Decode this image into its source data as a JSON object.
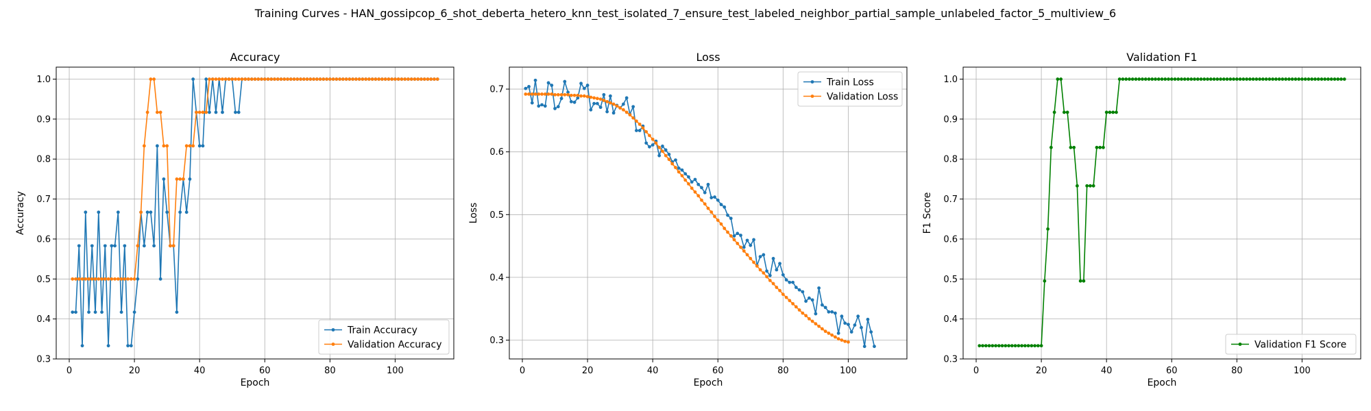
{
  "suptitle": "Training Curves - HAN_gossipcop_6_shot_deberta_hetero_knn_test_isolated_7_ensure_test_labeled_neighbor_partial_sample_unlabeled_factor_5_multiview_6",
  "colors": {
    "blue": "#1f77b4",
    "orange": "#ff7f0e",
    "green": "#008000",
    "grid": "#b0b0b0"
  },
  "chart_data": [
    {
      "type": "line",
      "title": "Accuracy",
      "xlabel": "Epoch",
      "ylabel": "Accuracy",
      "xlim": [
        -4,
        118
      ],
      "ylim": [
        0.3,
        1.03
      ],
      "xticks": [
        0,
        20,
        40,
        60,
        80,
        100
      ],
      "yticks": [
        0.3,
        0.4,
        0.5,
        0.6,
        0.7,
        0.8,
        0.9,
        1.0
      ],
      "ytick_labels": [
        "0.3",
        "0.4",
        "0.5",
        "0.6",
        "0.7",
        "0.8",
        "0.9",
        "1.0"
      ],
      "grid": true,
      "legend": "lower-right",
      "series": [
        {
          "name": "Train Accuracy",
          "color": "#1f77b4",
          "x_start": 1,
          "values": [
            0.417,
            0.417,
            0.583,
            0.333,
            0.667,
            0.417,
            0.583,
            0.417,
            0.667,
            0.417,
            0.583,
            0.333,
            0.583,
            0.583,
            0.667,
            0.417,
            0.583,
            0.333,
            0.333,
            0.417,
            0.5,
            0.667,
            0.583,
            0.667,
            0.667,
            0.583,
            0.833,
            0.5,
            0.75,
            0.667,
            0.583,
            0.583,
            0.417,
            0.667,
            0.75,
            0.667,
            0.75,
            1.0,
            0.917,
            0.833,
            0.833,
            1.0,
            0.917,
            1.0,
            0.917,
            1.0,
            0.917,
            1.0,
            1.0,
            1.0,
            0.917,
            0.917,
            1.0,
            1.0,
            1.0,
            1.0,
            1.0,
            1.0,
            1.0,
            1.0,
            1.0,
            1.0,
            1.0,
            1.0,
            1.0,
            1.0,
            1.0,
            1.0,
            1.0,
            1.0,
            1.0,
            1.0,
            1.0,
            1.0,
            1.0,
            1.0,
            1.0,
            1.0,
            1.0,
            1.0,
            1.0,
            1.0,
            1.0,
            1.0,
            1.0,
            1.0,
            1.0,
            1.0,
            1.0,
            1.0,
            1.0,
            1.0,
            1.0,
            1.0,
            1.0,
            1.0,
            1.0,
            1.0,
            1.0,
            1.0,
            1.0,
            1.0,
            1.0,
            1.0,
            1.0,
            1.0,
            1.0,
            1.0,
            1.0,
            1.0,
            1.0,
            1.0,
            1.0
          ]
        },
        {
          "name": "Validation Accuracy",
          "color": "#ff7f0e",
          "x_start": 1,
          "values": [
            0.5,
            0.5,
            0.5,
            0.5,
            0.5,
            0.5,
            0.5,
            0.5,
            0.5,
            0.5,
            0.5,
            0.5,
            0.5,
            0.5,
            0.5,
            0.5,
            0.5,
            0.5,
            0.5,
            0.5,
            0.583,
            0.667,
            0.833,
            0.917,
            1.0,
            1.0,
            0.917,
            0.917,
            0.833,
            0.833,
            0.583,
            0.583,
            0.75,
            0.75,
            0.75,
            0.833,
            0.833,
            0.833,
            0.917,
            0.917,
            0.917,
            0.917,
            1.0,
            1.0,
            1.0,
            1.0,
            1.0,
            1.0,
            1.0,
            1.0,
            1.0,
            1.0,
            1.0,
            1.0,
            1.0,
            1.0,
            1.0,
            1.0,
            1.0,
            1.0,
            1.0,
            1.0,
            1.0,
            1.0,
            1.0,
            1.0,
            1.0,
            1.0,
            1.0,
            1.0,
            1.0,
            1.0,
            1.0,
            1.0,
            1.0,
            1.0,
            1.0,
            1.0,
            1.0,
            1.0,
            1.0,
            1.0,
            1.0,
            1.0,
            1.0,
            1.0,
            1.0,
            1.0,
            1.0,
            1.0,
            1.0,
            1.0,
            1.0,
            1.0,
            1.0,
            1.0,
            1.0,
            1.0,
            1.0,
            1.0,
            1.0,
            1.0,
            1.0,
            1.0,
            1.0,
            1.0,
            1.0,
            1.0,
            1.0,
            1.0,
            1.0,
            1.0,
            1.0
          ]
        }
      ]
    },
    {
      "type": "line",
      "title": "Loss",
      "xlabel": "Epoch",
      "ylabel": "Loss",
      "xlim": [
        -4,
        118
      ],
      "ylim": [
        0.27,
        0.735
      ],
      "xticks": [
        0,
        20,
        40,
        60,
        80,
        100
      ],
      "yticks": [
        0.3,
        0.4,
        0.5,
        0.6,
        0.7
      ],
      "ytick_labels": [
        "0.3",
        "0.4",
        "0.5",
        "0.6",
        "0.7"
      ],
      "grid": true,
      "legend": "top-right",
      "series": [
        {
          "name": "Train Loss",
          "color": "#1f77b4",
          "x_start": 1,
          "values": [
            0.701,
            0.704,
            0.678,
            0.714,
            0.673,
            0.675,
            0.673,
            0.71,
            0.706,
            0.669,
            0.672,
            0.685,
            0.712,
            0.695,
            0.68,
            0.679,
            0.686,
            0.709,
            0.701,
            0.706,
            0.667,
            0.677,
            0.677,
            0.671,
            0.691,
            0.664,
            0.689,
            0.662,
            0.674,
            0.67,
            0.676,
            0.686,
            0.66,
            0.672,
            0.634,
            0.634,
            0.641,
            0.614,
            0.608,
            0.611,
            0.617,
            0.594,
            0.609,
            0.603,
            0.596,
            0.584,
            0.587,
            0.574,
            0.571,
            0.565,
            0.56,
            0.552,
            0.556,
            0.548,
            0.543,
            0.535,
            0.548,
            0.527,
            0.528,
            0.523,
            0.516,
            0.512,
            0.499,
            0.494,
            0.466,
            0.47,
            0.467,
            0.448,
            0.459,
            0.451,
            0.46,
            0.419,
            0.433,
            0.436,
            0.41,
            0.403,
            0.43,
            0.412,
            0.422,
            0.404,
            0.396,
            0.392,
            0.392,
            0.384,
            0.38,
            0.377,
            0.362,
            0.367,
            0.364,
            0.342,
            0.383,
            0.356,
            0.352,
            0.345,
            0.345,
            0.343,
            0.311,
            0.338,
            0.327,
            0.325,
            0.313,
            0.324,
            0.338,
            0.32,
            0.29,
            0.333,
            0.313,
            0.29
          ]
        },
        {
          "name": "Validation Loss",
          "color": "#ff7f0e",
          "x_start": 1,
          "values": [
            0.692,
            0.692,
            0.692,
            0.692,
            0.692,
            0.692,
            0.692,
            0.692,
            0.692,
            0.691,
            0.691,
            0.691,
            0.691,
            0.691,
            0.69,
            0.69,
            0.69,
            0.689,
            0.689,
            0.688,
            0.687,
            0.686,
            0.685,
            0.684,
            0.682,
            0.68,
            0.678,
            0.676,
            0.673,
            0.67,
            0.667,
            0.663,
            0.659,
            0.654,
            0.649,
            0.644,
            0.638,
            0.632,
            0.626,
            0.62,
            0.614,
            0.607,
            0.601,
            0.594,
            0.588,
            0.581,
            0.575,
            0.568,
            0.562,
            0.555,
            0.549,
            0.542,
            0.536,
            0.53,
            0.523,
            0.517,
            0.51,
            0.504,
            0.497,
            0.491,
            0.485,
            0.478,
            0.472,
            0.466,
            0.46,
            0.454,
            0.448,
            0.442,
            0.436,
            0.43,
            0.424,
            0.418,
            0.412,
            0.407,
            0.401,
            0.395,
            0.39,
            0.384,
            0.379,
            0.373,
            0.368,
            0.363,
            0.358,
            0.353,
            0.348,
            0.343,
            0.339,
            0.334,
            0.33,
            0.326,
            0.322,
            0.318,
            0.314,
            0.311,
            0.308,
            0.305,
            0.302,
            0.3,
            0.298,
            0.297
          ]
        }
      ]
    },
    {
      "type": "line",
      "title": "Validation F1",
      "xlabel": "Epoch",
      "ylabel": "F1 Score",
      "xlim": [
        -4,
        118
      ],
      "ylim": [
        0.3,
        1.03
      ],
      "xticks": [
        0,
        20,
        40,
        60,
        80,
        100
      ],
      "yticks": [
        0.3,
        0.4,
        0.5,
        0.6,
        0.7,
        0.8,
        0.9,
        1.0
      ],
      "ytick_labels": [
        "0.3",
        "0.4",
        "0.5",
        "0.6",
        "0.7",
        "0.8",
        "0.9",
        "1.0"
      ],
      "grid": true,
      "legend": "lower-right",
      "series": [
        {
          "name": "Validation F1 Score",
          "color": "#008000",
          "x_start": 1,
          "values": [
            0.333,
            0.333,
            0.333,
            0.333,
            0.333,
            0.333,
            0.333,
            0.333,
            0.333,
            0.333,
            0.333,
            0.333,
            0.333,
            0.333,
            0.333,
            0.333,
            0.333,
            0.333,
            0.333,
            0.333,
            0.495,
            0.625,
            0.829,
            0.917,
            1.0,
            1.0,
            0.917,
            0.917,
            0.829,
            0.829,
            0.733,
            0.495,
            0.495,
            0.733,
            0.733,
            0.733,
            0.829,
            0.829,
            0.829,
            0.917,
            0.917,
            0.917,
            0.917,
            1.0,
            1.0,
            1.0,
            1.0,
            1.0,
            1.0,
            1.0,
            1.0,
            1.0,
            1.0,
            1.0,
            1.0,
            1.0,
            1.0,
            1.0,
            1.0,
            1.0,
            1.0,
            1.0,
            1.0,
            1.0,
            1.0,
            1.0,
            1.0,
            1.0,
            1.0,
            1.0,
            1.0,
            1.0,
            1.0,
            1.0,
            1.0,
            1.0,
            1.0,
            1.0,
            1.0,
            1.0,
            1.0,
            1.0,
            1.0,
            1.0,
            1.0,
            1.0,
            1.0,
            1.0,
            1.0,
            1.0,
            1.0,
            1.0,
            1.0,
            1.0,
            1.0,
            1.0,
            1.0,
            1.0,
            1.0,
            1.0,
            1.0,
            1.0,
            1.0,
            1.0,
            1.0,
            1.0,
            1.0,
            1.0,
            1.0,
            1.0,
            1.0,
            1.0,
            1.0
          ]
        }
      ]
    }
  ]
}
